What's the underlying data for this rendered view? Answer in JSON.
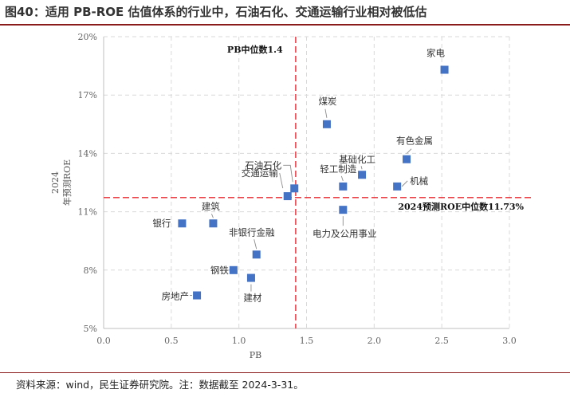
{
  "header": {
    "title": "图40：适用 PB-ROE 估值体系的行业中，石油石化、交通运输行业相对被低估"
  },
  "footer": {
    "source": "资料来源：wind，民生证券研究院。注：数据截至 2024-3-31。"
  },
  "chart_data": {
    "type": "scatter",
    "title": "图40：适用 PB-ROE 估值体系的行业中，石油石化、交通运输行业相对被低估",
    "xlabel": "PB",
    "ylabel": [
      "2024",
      "年预测ROE"
    ],
    "xlim": [
      0,
      3
    ],
    "ylim": [
      5,
      20
    ],
    "x_ticks": [
      "0.0",
      "0.5",
      "1.0",
      "1.5",
      "2.0",
      "2.5",
      "3.0"
    ],
    "y_ticks": [
      "5%",
      "8%",
      "11%",
      "14%",
      "17%",
      "20%"
    ],
    "grid": true,
    "points": [
      {
        "name": "家电",
        "x": 2.52,
        "y": 18.3
      },
      {
        "name": "煤炭",
        "x": 1.65,
        "y": 15.5
      },
      {
        "name": "有色金属",
        "x": 2.24,
        "y": 13.7
      },
      {
        "name": "基础化工",
        "x": 1.91,
        "y": 12.9
      },
      {
        "name": "轻工制造",
        "x": 1.77,
        "y": 12.3
      },
      {
        "name": "机械",
        "x": 2.17,
        "y": 12.3
      },
      {
        "name": "石油石化",
        "x": 1.41,
        "y": 12.2
      },
      {
        "name": "交通运输",
        "x": 1.36,
        "y": 11.8
      },
      {
        "name": "电力及公用事业",
        "x": 1.77,
        "y": 11.1
      },
      {
        "name": "银行",
        "x": 0.58,
        "y": 10.4
      },
      {
        "name": "建筑",
        "x": 0.81,
        "y": 10.4
      },
      {
        "name": "非银行金融",
        "x": 1.13,
        "y": 8.8
      },
      {
        "name": "钢铁",
        "x": 0.96,
        "y": 8.0
      },
      {
        "name": "建材",
        "x": 1.09,
        "y": 7.6
      },
      {
        "name": "房地产",
        "x": 0.69,
        "y": 6.7
      }
    ],
    "reference_lines": [
      {
        "axis": "x",
        "value": 1.42,
        "label": "PB中位数1.4"
      },
      {
        "axis": "y",
        "value": 11.73,
        "label": "2024预测ROE中位数11.73%"
      }
    ],
    "colors": {
      "marker": "#4472c4",
      "reference": "#e8262d",
      "grid": "#d9d9d9"
    }
  }
}
